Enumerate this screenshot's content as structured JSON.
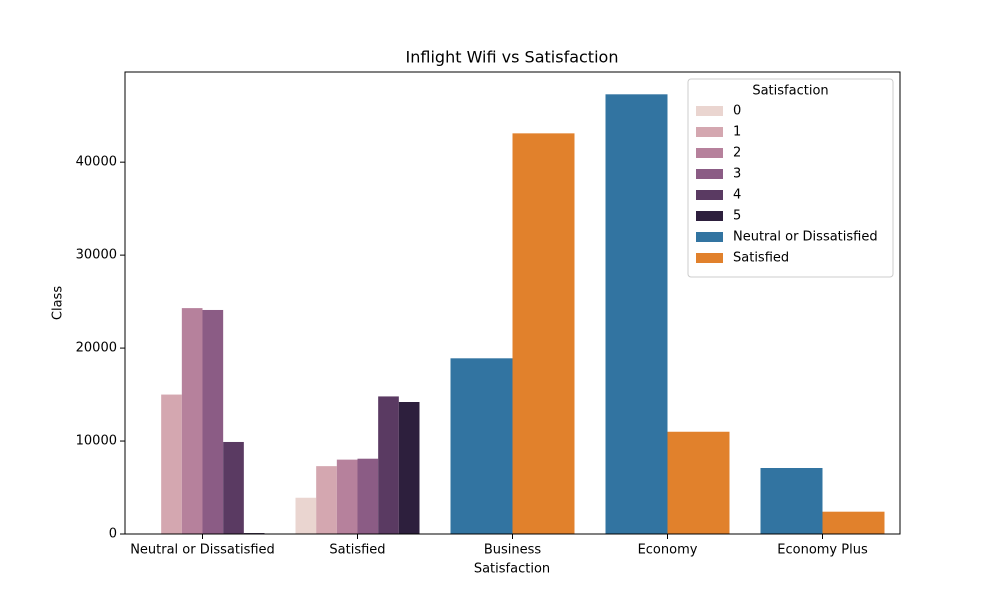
{
  "chart_data": {
    "type": "bar",
    "title": "Inflight Wifi vs Satisfaction",
    "x_label": "Satisfaction",
    "y_label": "Class",
    "legend_title": "Satisfaction",
    "legend": "upper right",
    "categories": [
      "Neutral or Dissatisfied",
      "Satisfied",
      "Business",
      "Economy",
      "Economy Plus"
    ],
    "series": [
      {
        "name": "0",
        "color": "#ead5d0",
        "values": [
          0,
          3900,
          null,
          null,
          null
        ]
      },
      {
        "name": "1",
        "color": "#d4a7b0",
        "values": [
          15000,
          7300,
          null,
          null,
          null
        ]
      },
      {
        "name": "2",
        "color": "#b6819c",
        "values": [
          24300,
          8000,
          null,
          null,
          null
        ]
      },
      {
        "name": "3",
        "color": "#8b5c85",
        "values": [
          24100,
          8100,
          null,
          null,
          null
        ]
      },
      {
        "name": "4",
        "color": "#5a3a62",
        "values": [
          9900,
          14800,
          null,
          null,
          null
        ]
      },
      {
        "name": "5",
        "color": "#2d1f3d",
        "values": [
          100,
          14200,
          null,
          null,
          null
        ]
      },
      {
        "name": "Neutral or Dissatisfied",
        "color": "#3274a1",
        "values": [
          null,
          null,
          18900,
          47300,
          7100
        ]
      },
      {
        "name": "Satisfied",
        "color": "#e1812c",
        "values": [
          null,
          null,
          43100,
          11000,
          2400
        ]
      }
    ],
    "ylim": [
      0,
      49700
    ],
    "yticks": [
      0,
      10000,
      20000,
      30000,
      40000
    ],
    "grid": false
  }
}
